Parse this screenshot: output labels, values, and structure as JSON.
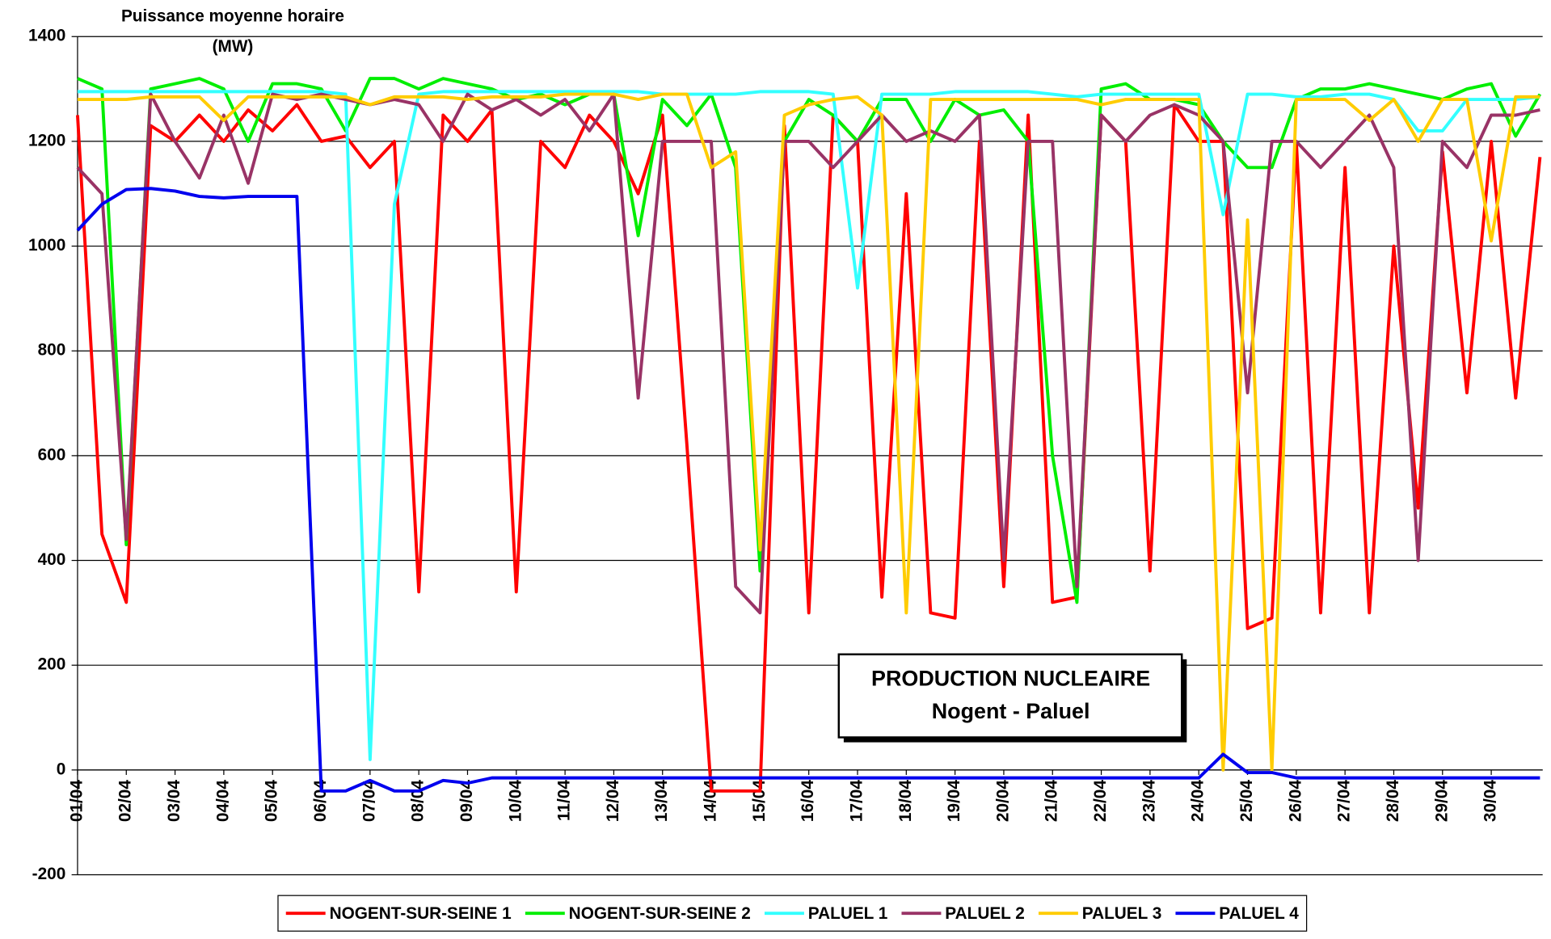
{
  "chart_data": {
    "type": "line",
    "y_label": [
      "Puissance moyenne horaire",
      "(MW)"
    ],
    "annotation": [
      "PRODUCTION NUCLEAIRE",
      "Nogent - Paluel"
    ],
    "x": [
      1,
      1.5,
      2,
      2.5,
      3,
      3.5,
      4,
      4.5,
      5,
      5.5,
      6,
      6.5,
      7,
      7.5,
      8,
      8.5,
      9,
      9.5,
      10,
      10.5,
      11,
      11.5,
      12,
      12.5,
      13,
      13.5,
      14,
      14.5,
      15,
      15.5,
      16,
      16.5,
      17,
      17.5,
      18,
      18.5,
      19,
      19.5,
      20,
      20.5,
      21,
      21.5,
      22,
      22.5,
      23,
      23.5,
      24,
      24.5,
      25,
      25.5,
      26,
      26.5,
      27,
      27.5,
      28,
      28.5,
      29,
      29.5,
      30,
      30.5,
      31
    ],
    "xlim": [
      1,
      31
    ],
    "xticks": [
      {
        "value": 1,
        "label": "01/04"
      },
      {
        "value": 2,
        "label": "02/04"
      },
      {
        "value": 3,
        "label": "03/04"
      },
      {
        "value": 4,
        "label": "04/04"
      },
      {
        "value": 5,
        "label": "05/04"
      },
      {
        "value": 6,
        "label": "06/04"
      },
      {
        "value": 7,
        "label": "07/04"
      },
      {
        "value": 8,
        "label": "08/04"
      },
      {
        "value": 9,
        "label": "09/04"
      },
      {
        "value": 10,
        "label": "10/04"
      },
      {
        "value": 11,
        "label": "11/04"
      },
      {
        "value": 12,
        "label": "12/04"
      },
      {
        "value": 13,
        "label": "13/04"
      },
      {
        "value": 14,
        "label": "14/04"
      },
      {
        "value": 15,
        "label": "15/04"
      },
      {
        "value": 16,
        "label": "16/04"
      },
      {
        "value": 17,
        "label": "17/04"
      },
      {
        "value": 18,
        "label": "18/04"
      },
      {
        "value": 19,
        "label": "19/04"
      },
      {
        "value": 20,
        "label": "20/04"
      },
      {
        "value": 21,
        "label": "21/04"
      },
      {
        "value": 22,
        "label": "22/04"
      },
      {
        "value": 23,
        "label": "23/04"
      },
      {
        "value": 24,
        "label": "24/04"
      },
      {
        "value": 25,
        "label": "25/04"
      },
      {
        "value": 26,
        "label": "26/04"
      },
      {
        "value": 27,
        "label": "27/04"
      },
      {
        "value": 28,
        "label": "28/04"
      },
      {
        "value": 29,
        "label": "29/04"
      },
      {
        "value": 30,
        "label": "30/04"
      }
    ],
    "ylim": [
      -200,
      1400
    ],
    "yticks": [
      -200,
      0,
      200,
      400,
      600,
      800,
      1000,
      1200,
      1400
    ],
    "grid": true,
    "legend": "bottom",
    "series": [
      {
        "name": "NOGENT-SUR-SEINE 1",
        "color": "#ff0000",
        "values": [
          1250,
          450,
          320,
          1230,
          1200,
          1250,
          1200,
          1260,
          1220,
          1270,
          1200,
          1210,
          1150,
          1200,
          340,
          1250,
          1200,
          1260,
          340,
          1200,
          1150,
          1250,
          1200,
          1100,
          1250,
          620,
          -40,
          -40,
          -40,
          1230,
          300,
          1250,
          1200,
          330,
          1100,
          300,
          290,
          1200,
          350,
          1250,
          320,
          330,
          1250,
          1200,
          380,
          1270,
          1200,
          1200,
          270,
          290,
          1200,
          300,
          1150,
          300,
          1000,
          500,
          1180,
          720,
          1200,
          710,
          1170
        ]
      },
      {
        "name": "NOGENT-SUR-SEINE 2",
        "color": "#00ee00",
        "values": [
          1320,
          1300,
          430,
          1300,
          1310,
          1320,
          1300,
          1200,
          1310,
          1310,
          1300,
          1220,
          1320,
          1320,
          1300,
          1320,
          1310,
          1300,
          1280,
          1290,
          1270,
          1290,
          1290,
          1020,
          1280,
          1230,
          1290,
          1150,
          380,
          1200,
          1280,
          1250,
          1200,
          1280,
          1280,
          1200,
          1280,
          1250,
          1260,
          1200,
          600,
          320,
          1300,
          1310,
          1280,
          1280,
          1270,
          1200,
          1150,
          1150,
          1280,
          1300,
          1300,
          1310,
          1300,
          1290,
          1280,
          1300,
          1310,
          1210,
          1290
        ]
      },
      {
        "name": "PALUEL 1",
        "color": "#33ffff",
        "values": [
          1295,
          1295,
          1295,
          1295,
          1295,
          1295,
          1295,
          1295,
          1295,
          1295,
          1295,
          1290,
          20,
          1080,
          1290,
          1295,
          1295,
          1295,
          1295,
          1295,
          1295,
          1295,
          1295,
          1295,
          1290,
          1290,
          1290,
          1290,
          1295,
          1295,
          1295,
          1290,
          920,
          1290,
          1290,
          1290,
          1295,
          1295,
          1295,
          1295,
          1290,
          1285,
          1290,
          1290,
          1290,
          1290,
          1290,
          1060,
          1290,
          1290,
          1285,
          1285,
          1290,
          1290,
          1280,
          1220,
          1220,
          1280,
          1280,
          1280,
          1285
        ]
      },
      {
        "name": "PALUEL 2",
        "color": "#993366",
        "values": [
          1150,
          1100,
          440,
          1290,
          1200,
          1130,
          1250,
          1120,
          1290,
          1280,
          1290,
          1280,
          1270,
          1280,
          1270,
          1200,
          1290,
          1260,
          1280,
          1250,
          1280,
          1220,
          1290,
          710,
          1200,
          1200,
          1200,
          350,
          300,
          1200,
          1200,
          1150,
          1200,
          1250,
          1200,
          1220,
          1200,
          1250,
          400,
          1200,
          1200,
          350,
          1250,
          1200,
          1250,
          1270,
          1250,
          1200,
          720,
          1200,
          1200,
          1150,
          1200,
          1250,
          1150,
          400,
          1200,
          1150,
          1250,
          1250,
          1260
        ]
      },
      {
        "name": "PALUEL 3",
        "color": "#ffcc00",
        "values": [
          1280,
          1280,
          1280,
          1285,
          1285,
          1285,
          1240,
          1285,
          1285,
          1285,
          1285,
          1285,
          1270,
          1285,
          1285,
          1285,
          1280,
          1285,
          1285,
          1285,
          1290,
          1290,
          1290,
          1280,
          1290,
          1290,
          1150,
          1180,
          420,
          1250,
          1270,
          1280,
          1285,
          1250,
          300,
          1280,
          1280,
          1280,
          1280,
          1280,
          1280,
          1280,
          1270,
          1280,
          1280,
          1280,
          1280,
          0,
          1050,
          0,
          1280,
          1280,
          1280,
          1240,
          1280,
          1200,
          1280,
          1280,
          1010,
          1285,
          1285
        ]
      },
      {
        "name": "PALUEL 4",
        "color": "#0000ee",
        "values": [
          1030,
          1080,
          1108,
          1110,
          1105,
          1095,
          1092,
          1095,
          1095,
          1095,
          -40,
          -40,
          -20,
          -40,
          -40,
          -20,
          -25,
          -15,
          -15,
          -15,
          -15,
          -15,
          -15,
          -15,
          -15,
          -15,
          -15,
          -15,
          -15,
          -15,
          -15,
          -15,
          -15,
          -15,
          -15,
          -15,
          -15,
          -15,
          -15,
          -15,
          -15,
          -15,
          -15,
          -15,
          -15,
          -15,
          -15,
          30,
          -5,
          -5,
          -15,
          -15,
          -15,
          -15,
          -15,
          -15,
          -15,
          -15,
          -15,
          -15,
          -15
        ]
      }
    ]
  }
}
